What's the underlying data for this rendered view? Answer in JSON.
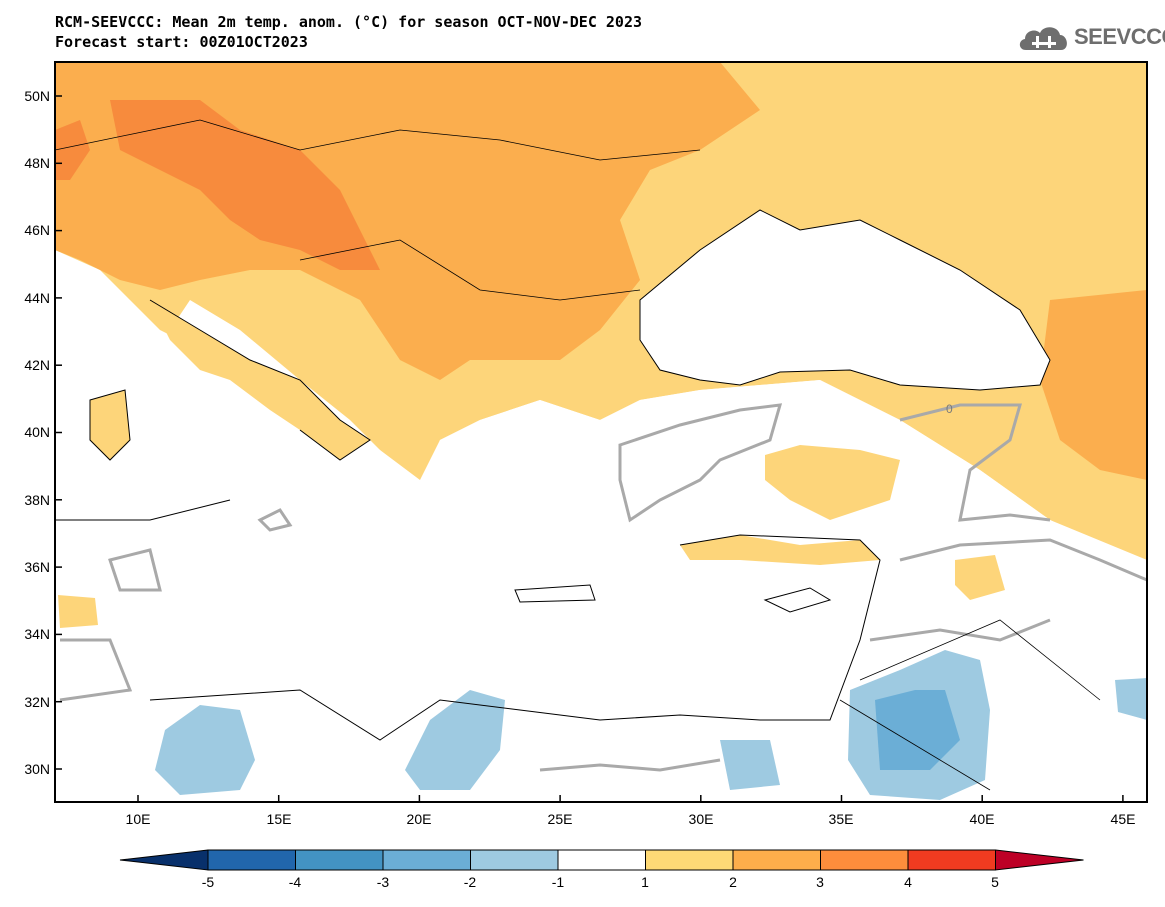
{
  "header": {
    "title_line1": "RCM-SEEVCCC: Mean 2m temp. anom. (°C) for season OCT-NOV-DEC 2023",
    "title_line2": "Forecast start: 00Z01OCT2023",
    "logo_text": "SEEVCCC"
  },
  "map": {
    "lat_labels": [
      "50N",
      "48N",
      "46N",
      "44N",
      "42N",
      "40N",
      "38N",
      "36N",
      "34N",
      "32N",
      "30N"
    ],
    "lon_labels": [
      "10E",
      "15E",
      "20E",
      "25E",
      "30E",
      "35E",
      "40E",
      "45E"
    ],
    "contour_label": "0"
  },
  "colorbar": {
    "labels": [
      "-5",
      "-4",
      "-3",
      "-2",
      "-1",
      "1",
      "2",
      "3",
      "4",
      "5"
    ],
    "colors": [
      "#08306b",
      "#2166ac",
      "#4393c3",
      "#6baed6",
      "#9ecae1",
      "#ffffff",
      "#fed976",
      "#fdae4b",
      "#fd8d3c",
      "#f03b20",
      "#bd0026"
    ]
  },
  "colors": {
    "anom_1_2": "#fdd57a",
    "anom_2_3": "#fbae4e",
    "anom_3_4": "#f78b3d",
    "anom_m1_m2": "#9ecae1",
    "anom_m2_m3": "#6baed6",
    "contour": "#a9a9a9"
  }
}
